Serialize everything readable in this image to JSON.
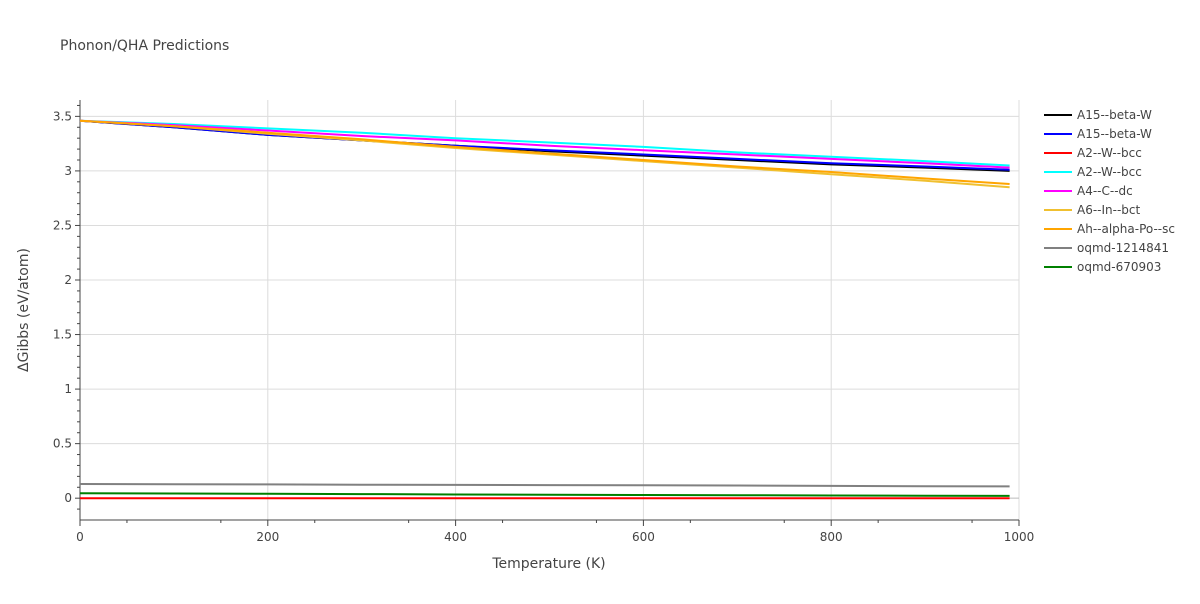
{
  "chart_data": {
    "type": "line",
    "title": "Phonon/QHA Predictions",
    "xlabel": "Temperature (K)",
    "ylabel": "ΔGibbs (eV/atom)",
    "xlim": [
      0,
      1000
    ],
    "ylim": [
      -0.2,
      3.65
    ],
    "xticks": [
      0,
      200,
      400,
      600,
      800,
      1000
    ],
    "yticks": [
      0,
      0.5,
      1,
      1.5,
      2,
      2.5,
      3,
      3.5
    ],
    "xtick_labels": [
      "0",
      "200",
      "400",
      "600",
      "800",
      "1000"
    ],
    "ytick_labels": [
      "0",
      "0.5",
      "1",
      "1.5",
      "2",
      "2.5",
      "3",
      "3.5"
    ],
    "grid": true,
    "legend_position": "right",
    "x": [
      0,
      100,
      200,
      300,
      400,
      500,
      600,
      700,
      800,
      900,
      990
    ],
    "series": [
      {
        "name": "A15--beta-W",
        "color": "#000000",
        "values": [
          3.46,
          3.4,
          3.33,
          3.28,
          3.23,
          3.18,
          3.14,
          3.1,
          3.06,
          3.03,
          3.0
        ]
      },
      {
        "name": "A15--beta-W",
        "color": "#0000ff",
        "values": [
          3.46,
          3.4,
          3.33,
          3.28,
          3.23,
          3.19,
          3.15,
          3.11,
          3.07,
          3.04,
          3.01
        ]
      },
      {
        "name": "A2--W--bcc",
        "color": "#ff0000",
        "values": [
          0.0,
          0.0,
          0.0,
          0.0,
          0.0,
          0.0,
          0.0,
          0.0,
          0.0,
          0.0,
          0.0
        ]
      },
      {
        "name": "A2--W--bcc",
        "color": "#00ffff",
        "values": [
          3.46,
          3.43,
          3.39,
          3.35,
          3.3,
          3.26,
          3.22,
          3.17,
          3.13,
          3.09,
          3.05
        ]
      },
      {
        "name": "A4--C--dc",
        "color": "#ff00ff",
        "values": [
          3.46,
          3.42,
          3.37,
          3.32,
          3.28,
          3.23,
          3.19,
          3.15,
          3.11,
          3.07,
          3.03
        ]
      },
      {
        "name": "A6--In--bct",
        "color": "#f0c030",
        "values": [
          3.46,
          3.41,
          3.34,
          3.28,
          3.21,
          3.15,
          3.09,
          3.03,
          2.97,
          2.91,
          2.85
        ]
      },
      {
        "name": "Ah--alpha-Po--sc",
        "color": "#ffa500",
        "values": [
          3.46,
          3.41,
          3.35,
          3.29,
          3.22,
          3.16,
          3.1,
          3.04,
          2.99,
          2.93,
          2.88
        ]
      },
      {
        "name": "oqmd-1214841",
        "color": "#808080",
        "values": [
          0.13,
          0.128,
          0.126,
          0.124,
          0.122,
          0.12,
          0.118,
          0.116,
          0.113,
          0.11,
          0.108
        ]
      },
      {
        "name": "oqmd-670903",
        "color": "#008000",
        "values": [
          0.045,
          0.043,
          0.04,
          0.037,
          0.034,
          0.031,
          0.029,
          0.027,
          0.025,
          0.023,
          0.021
        ]
      }
    ]
  }
}
